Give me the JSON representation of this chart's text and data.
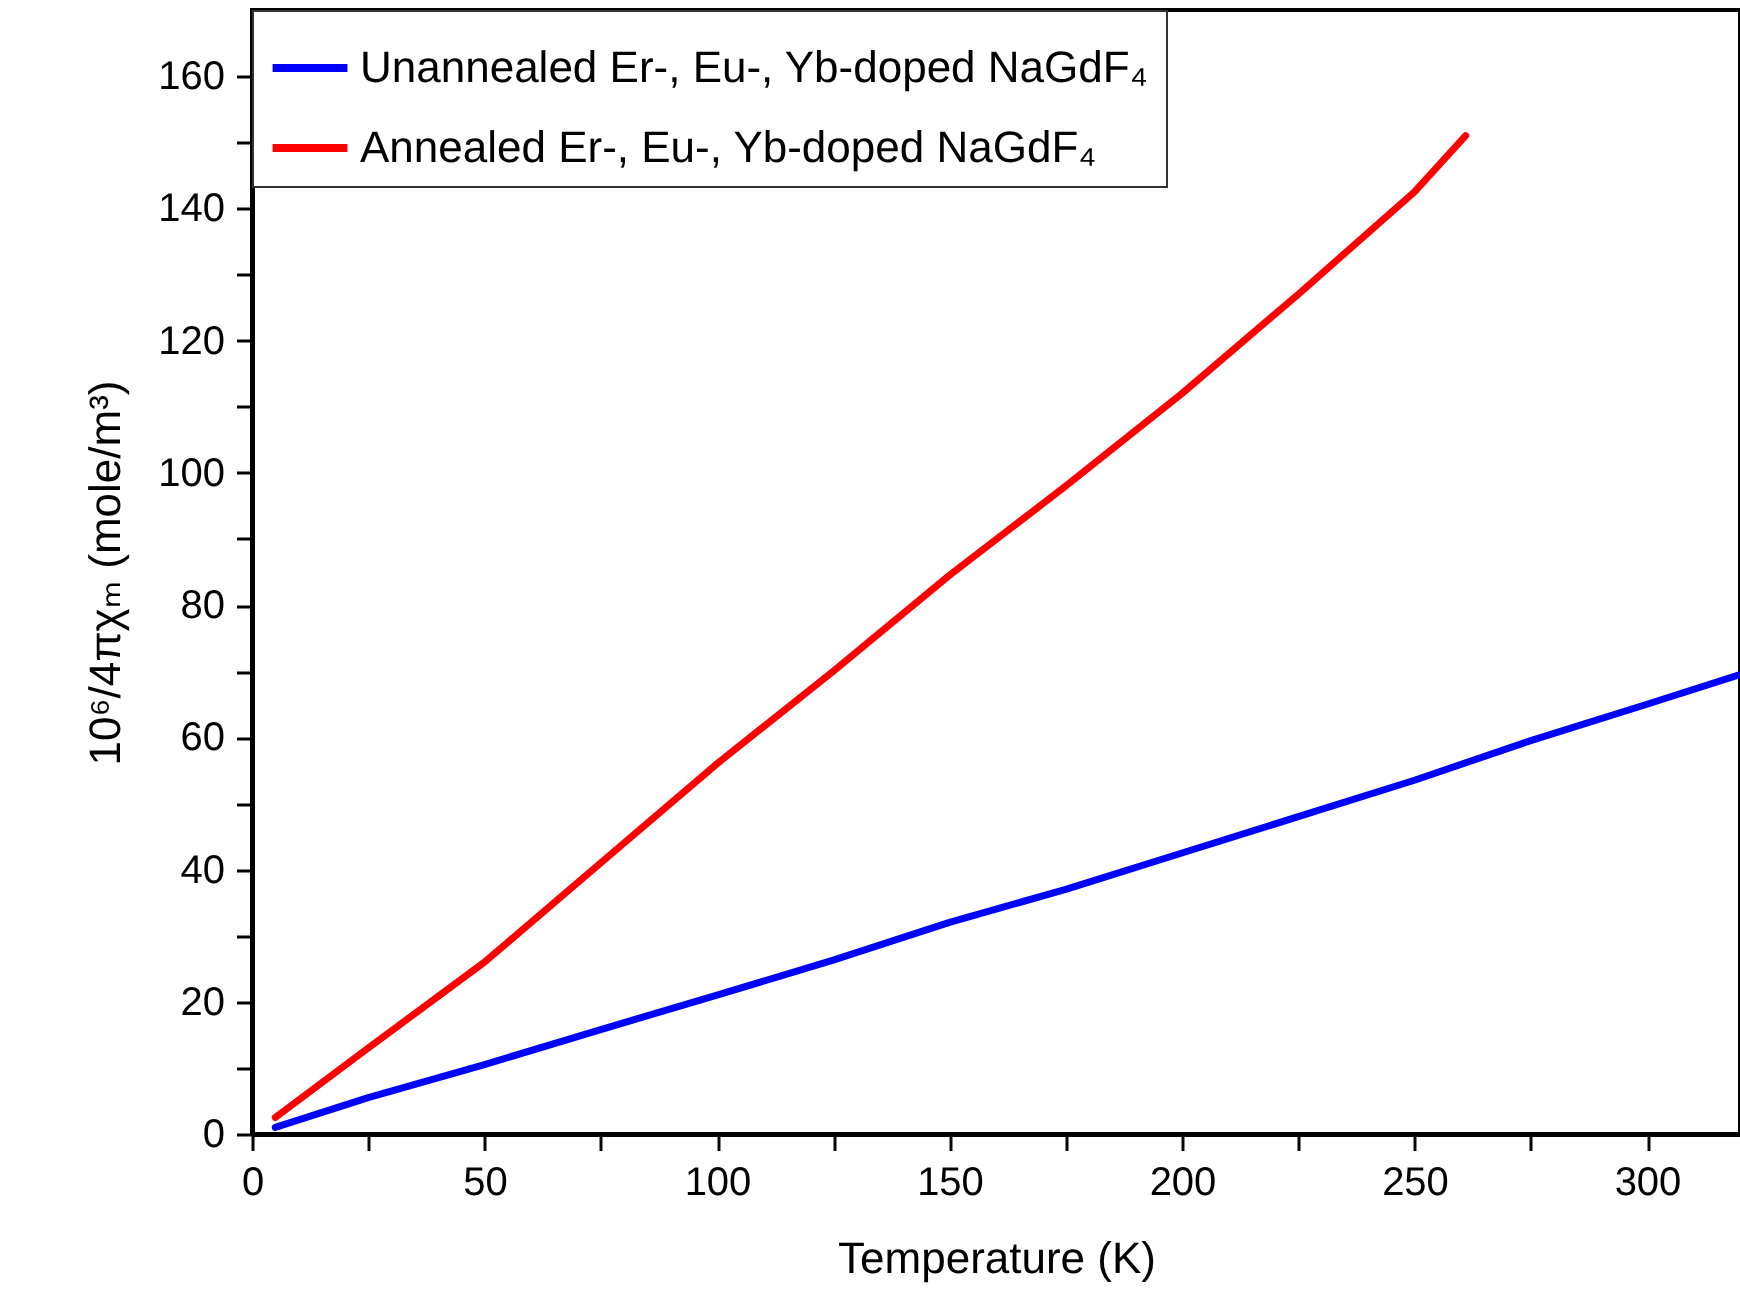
{
  "chart_data": {
    "type": "line",
    "xlabel": "Temperature (K)",
    "ylabel": "10⁶/4πχₘ (mole/m³)",
    "xlim": [
      0,
      320
    ],
    "ylim": [
      0,
      170
    ],
    "xticks": [
      0,
      {
        "value": 25,
        "label": null
      },
      50,
      {
        "value": 75,
        "label": null
      },
      100,
      {
        "value": 125,
        "label": null
      },
      150,
      {
        "value": 175,
        "label": null
      },
      200,
      {
        "value": 225,
        "label": null
      },
      250,
      {
        "value": 275,
        "label": null
      },
      300
    ],
    "yticks": [
      0,
      {
        "value": 10,
        "label": null
      },
      20,
      {
        "value": 30,
        "label": null
      },
      40,
      {
        "value": 50,
        "label": null
      },
      60,
      {
        "value": 70,
        "label": null
      },
      80,
      {
        "value": 90,
        "label": null
      },
      100,
      {
        "value": 110,
        "label": null
      },
      120,
      {
        "value": 130,
        "label": null
      },
      140,
      {
        "value": 150,
        "label": null
      },
      160
    ],
    "grid": false,
    "legend": "top left",
    "line_style": "solid",
    "marker": "none",
    "series": [
      {
        "name": "Unannealed Er-, Eu-, Yb-doped NaGdF₄",
        "color": "#0000ff",
        "x": [
          5,
          25,
          50,
          75,
          100,
          125,
          150,
          175,
          200,
          225,
          250,
          275,
          300,
          320
        ],
        "values": [
          1,
          5.5,
          10.5,
          15.8,
          21,
          26.3,
          32,
          37,
          42.5,
          48,
          53.5,
          59.5,
          65,
          69.5
        ]
      },
      {
        "name": "Annealed Er-, Eu-, Yb-doped NaGdF₄",
        "color": "#ff0000",
        "x": [
          5,
          25,
          50,
          75,
          100,
          125,
          150,
          175,
          200,
          225,
          250,
          261
        ],
        "values": [
          2.5,
          13,
          26,
          41,
          56,
          70,
          84.5,
          98,
          112,
          127,
          142.5,
          151
        ]
      }
    ]
  }
}
